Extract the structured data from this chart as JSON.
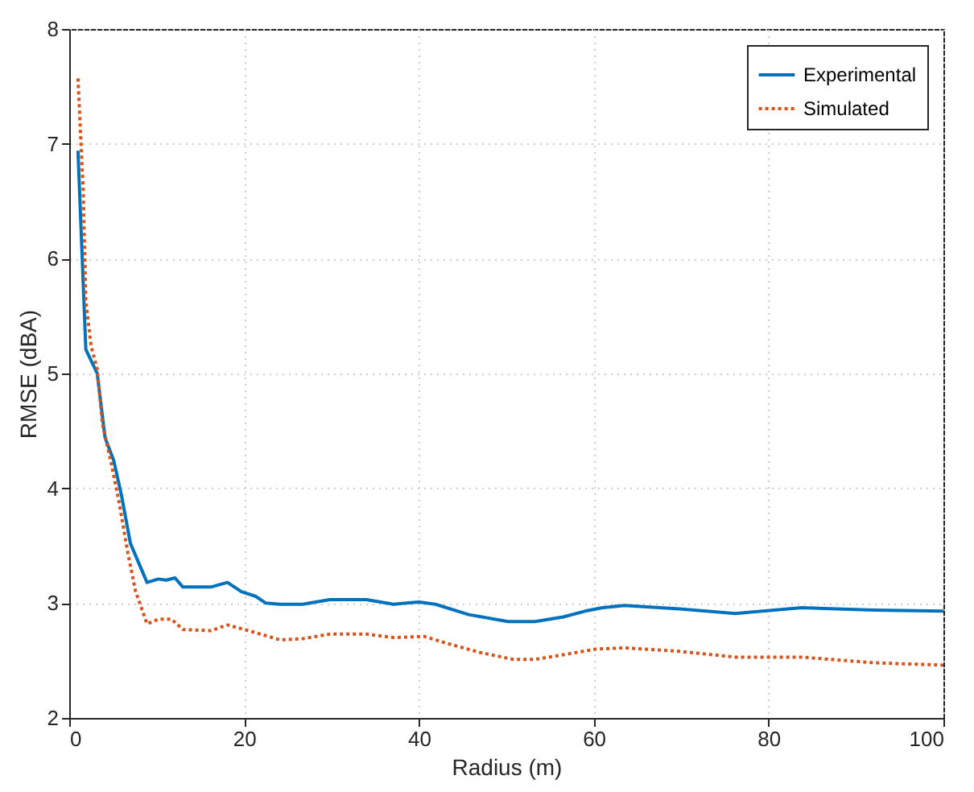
{
  "chart_data": {
    "type": "line",
    "xlabel": "Radius (m)",
    "ylabel": "RMSE (dBA)",
    "xlim": [
      0,
      100
    ],
    "xticks": [
      0,
      20,
      40,
      60,
      80,
      100
    ],
    "ylim": [
      2,
      8
    ],
    "yticks": [
      2,
      3,
      4,
      5,
      6,
      7,
      8
    ],
    "grid": true,
    "legend": "top right",
    "marker": "none",
    "series": [
      {
        "name": "Experimental",
        "color": "#0072bd",
        "line_style": "solid",
        "x": [
          1,
          1.9,
          3.2,
          4.1,
          5.1,
          6.0,
          7.0,
          8.9,
          10.2,
          11.1,
          12.1,
          13,
          16.2,
          18.1,
          19.7,
          21.3,
          22.5,
          24.1,
          26.7,
          29.8,
          34,
          37.1,
          40,
          41.9,
          45.7,
          50.2,
          53.3,
          56.5,
          59,
          61,
          63.5,
          69.8,
          76.2,
          83.8,
          92.1,
          100
        ],
        "values": [
          6.94,
          5.21,
          5.0,
          4.44,
          4.24,
          3.93,
          3.52,
          3.18,
          3.21,
          3.2,
          3.22,
          3.14,
          3.14,
          3.18,
          3.1,
          3.06,
          3.0,
          2.99,
          2.99,
          3.03,
          3.03,
          2.99,
          3.01,
          2.99,
          2.9,
          2.84,
          2.84,
          2.88,
          2.93,
          2.96,
          2.98,
          2.95,
          2.91,
          2.96,
          2.94,
          2.93
        ]
      },
      {
        "name": "Simulated",
        "color": "#d95319",
        "line_style": "dotted",
        "x": [
          1,
          1.6,
          1.9,
          2.5,
          3.2,
          3.8,
          4.8,
          5.7,
          6.7,
          7.6,
          8.9,
          10.2,
          11.7,
          13,
          16.2,
          18.1,
          21,
          24.1,
          26.7,
          29.8,
          34,
          37.1,
          40.6,
          43.2,
          47,
          50.8,
          53.3,
          56.5,
          60.3,
          63.5,
          69.8,
          76.2,
          83.8,
          92.1,
          100
        ],
        "values": [
          7.57,
          6.6,
          5.63,
          5.24,
          5.04,
          4.56,
          4.22,
          3.88,
          3.44,
          3.1,
          2.82,
          2.86,
          2.86,
          2.77,
          2.76,
          2.81,
          2.75,
          2.68,
          2.69,
          2.73,
          2.73,
          2.7,
          2.71,
          2.65,
          2.57,
          2.51,
          2.51,
          2.55,
          2.6,
          2.61,
          2.58,
          2.53,
          2.53,
          2.48,
          2.46
        ]
      }
    ]
  }
}
